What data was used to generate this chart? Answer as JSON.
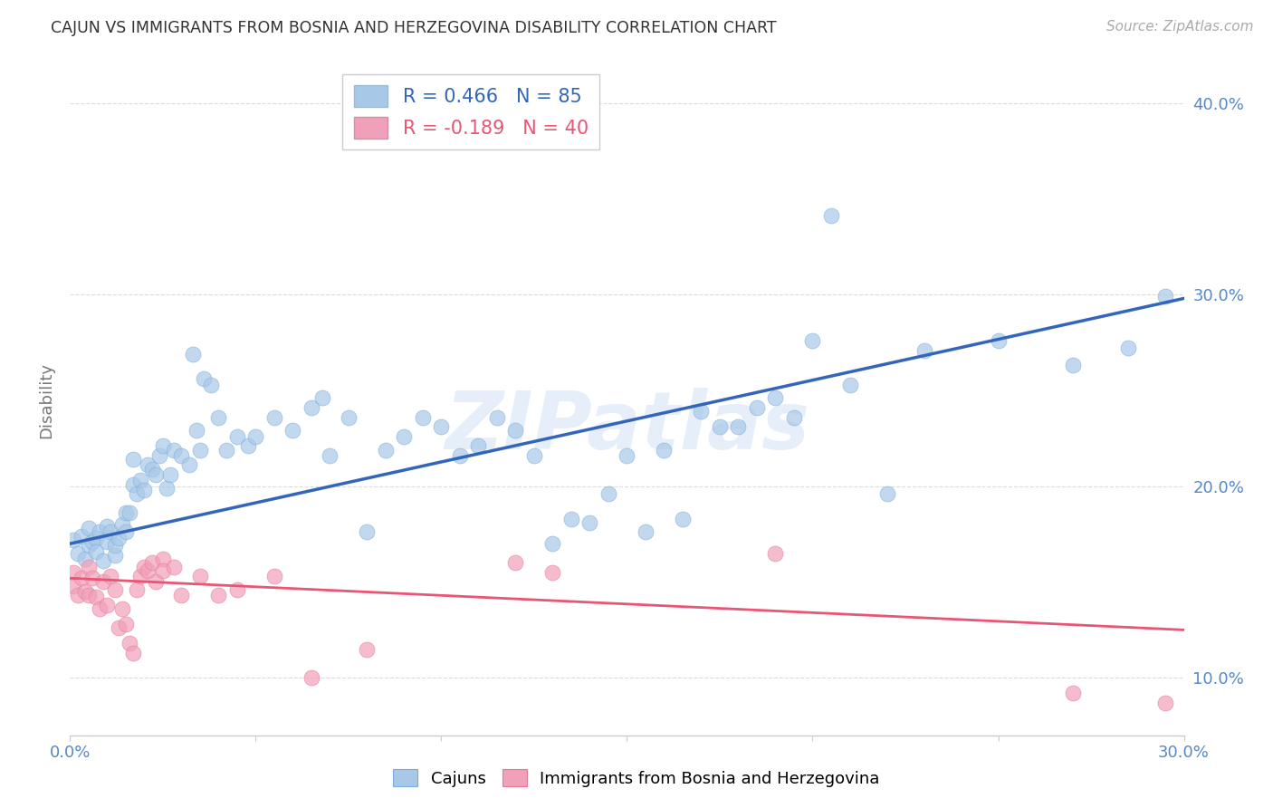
{
  "title": "CAJUN VS IMMIGRANTS FROM BOSNIA AND HERZEGOVINA DISABILITY CORRELATION CHART",
  "source": "Source: ZipAtlas.com",
  "ylabel": "Disability",
  "xlim": [
    0.0,
    0.3
  ],
  "ylim": [
    0.07,
    0.42
  ],
  "xtick_positions": [
    0.0,
    0.05,
    0.1,
    0.15,
    0.2,
    0.25,
    0.3
  ],
  "xtick_labels": [
    "0.0%",
    "",
    "",
    "",
    "",
    "",
    "30.0%"
  ],
  "ytick_positions": [
    0.1,
    0.2,
    0.3,
    0.4
  ],
  "ytick_labels": [
    "10.0%",
    "20.0%",
    "30.0%",
    "40.0%"
  ],
  "legend_r_labels": [
    "R = 0.466",
    "R = -0.189"
  ],
  "legend_n_labels": [
    "N = 85",
    "N = 40"
  ],
  "legend_labels": [
    "Cajuns",
    "Immigrants from Bosnia and Herzegovina"
  ],
  "cajun_color": "#a8c8e8",
  "bosnia_color": "#f0a0b8",
  "cajun_edge_color": "#7aacdc",
  "bosnia_edge_color": "#e87898",
  "line_cajun_color": "#3366bb",
  "line_bosnia_color": "#e85575",
  "cajun_line_x": [
    0.0,
    0.3
  ],
  "cajun_line_y": [
    0.17,
    0.298
  ],
  "bosnia_line_x": [
    0.0,
    0.3
  ],
  "bosnia_line_y": [
    0.152,
    0.125
  ],
  "watermark_text": "ZIPatlas",
  "background_color": "#ffffff",
  "grid_color": "#cccccc",
  "title_color": "#333333",
  "axis_label_color": "#777777",
  "tick_color": "#5588cc",
  "source_color": "#aaaaaa",
  "cajun_scatter": [
    [
      0.001,
      0.172
    ],
    [
      0.002,
      0.165
    ],
    [
      0.003,
      0.174
    ],
    [
      0.004,
      0.162
    ],
    [
      0.005,
      0.178
    ],
    [
      0.005,
      0.169
    ],
    [
      0.006,
      0.171
    ],
    [
      0.007,
      0.173
    ],
    [
      0.007,
      0.166
    ],
    [
      0.008,
      0.176
    ],
    [
      0.009,
      0.161
    ],
    [
      0.01,
      0.171
    ],
    [
      0.01,
      0.179
    ],
    [
      0.011,
      0.176
    ],
    [
      0.012,
      0.164
    ],
    [
      0.012,
      0.169
    ],
    [
      0.013,
      0.173
    ],
    [
      0.014,
      0.18
    ],
    [
      0.015,
      0.186
    ],
    [
      0.015,
      0.176
    ],
    [
      0.016,
      0.186
    ],
    [
      0.017,
      0.201
    ],
    [
      0.017,
      0.214
    ],
    [
      0.018,
      0.196
    ],
    [
      0.019,
      0.203
    ],
    [
      0.02,
      0.198
    ],
    [
      0.021,
      0.211
    ],
    [
      0.022,
      0.209
    ],
    [
      0.023,
      0.206
    ],
    [
      0.024,
      0.216
    ],
    [
      0.025,
      0.221
    ],
    [
      0.026,
      0.199
    ],
    [
      0.027,
      0.206
    ],
    [
      0.028,
      0.219
    ],
    [
      0.03,
      0.216
    ],
    [
      0.032,
      0.211
    ],
    [
      0.033,
      0.269
    ],
    [
      0.034,
      0.229
    ],
    [
      0.035,
      0.219
    ],
    [
      0.036,
      0.256
    ],
    [
      0.038,
      0.253
    ],
    [
      0.04,
      0.236
    ],
    [
      0.042,
      0.219
    ],
    [
      0.045,
      0.226
    ],
    [
      0.048,
      0.221
    ],
    [
      0.05,
      0.226
    ],
    [
      0.055,
      0.236
    ],
    [
      0.06,
      0.229
    ],
    [
      0.065,
      0.241
    ],
    [
      0.068,
      0.246
    ],
    [
      0.07,
      0.216
    ],
    [
      0.075,
      0.236
    ],
    [
      0.08,
      0.176
    ],
    [
      0.085,
      0.219
    ],
    [
      0.09,
      0.226
    ],
    [
      0.095,
      0.236
    ],
    [
      0.1,
      0.231
    ],
    [
      0.105,
      0.216
    ],
    [
      0.11,
      0.221
    ],
    [
      0.115,
      0.236
    ],
    [
      0.12,
      0.229
    ],
    [
      0.125,
      0.216
    ],
    [
      0.13,
      0.17
    ],
    [
      0.135,
      0.183
    ],
    [
      0.14,
      0.181
    ],
    [
      0.145,
      0.196
    ],
    [
      0.15,
      0.216
    ],
    [
      0.155,
      0.176
    ],
    [
      0.16,
      0.219
    ],
    [
      0.165,
      0.183
    ],
    [
      0.17,
      0.239
    ],
    [
      0.175,
      0.231
    ],
    [
      0.18,
      0.231
    ],
    [
      0.185,
      0.241
    ],
    [
      0.19,
      0.246
    ],
    [
      0.195,
      0.236
    ],
    [
      0.2,
      0.276
    ],
    [
      0.205,
      0.341
    ],
    [
      0.21,
      0.253
    ],
    [
      0.22,
      0.196
    ],
    [
      0.23,
      0.271
    ],
    [
      0.25,
      0.276
    ],
    [
      0.27,
      0.263
    ],
    [
      0.285,
      0.272
    ],
    [
      0.295,
      0.299
    ]
  ],
  "bosnia_scatter": [
    [
      0.001,
      0.155
    ],
    [
      0.001,
      0.148
    ],
    [
      0.002,
      0.143
    ],
    [
      0.003,
      0.152
    ],
    [
      0.004,
      0.145
    ],
    [
      0.005,
      0.158
    ],
    [
      0.005,
      0.143
    ],
    [
      0.006,
      0.152
    ],
    [
      0.007,
      0.142
    ],
    [
      0.008,
      0.136
    ],
    [
      0.009,
      0.15
    ],
    [
      0.01,
      0.138
    ],
    [
      0.011,
      0.153
    ],
    [
      0.012,
      0.146
    ],
    [
      0.013,
      0.126
    ],
    [
      0.014,
      0.136
    ],
    [
      0.015,
      0.128
    ],
    [
      0.016,
      0.118
    ],
    [
      0.017,
      0.113
    ],
    [
      0.018,
      0.146
    ],
    [
      0.019,
      0.153
    ],
    [
      0.02,
      0.158
    ],
    [
      0.021,
      0.156
    ],
    [
      0.022,
      0.16
    ],
    [
      0.023,
      0.15
    ],
    [
      0.025,
      0.162
    ],
    [
      0.025,
      0.156
    ],
    [
      0.028,
      0.158
    ],
    [
      0.03,
      0.143
    ],
    [
      0.035,
      0.153
    ],
    [
      0.04,
      0.143
    ],
    [
      0.045,
      0.146
    ],
    [
      0.055,
      0.153
    ],
    [
      0.065,
      0.1
    ],
    [
      0.08,
      0.115
    ],
    [
      0.12,
      0.16
    ],
    [
      0.13,
      0.155
    ],
    [
      0.19,
      0.165
    ],
    [
      0.27,
      0.092
    ],
    [
      0.295,
      0.087
    ]
  ]
}
